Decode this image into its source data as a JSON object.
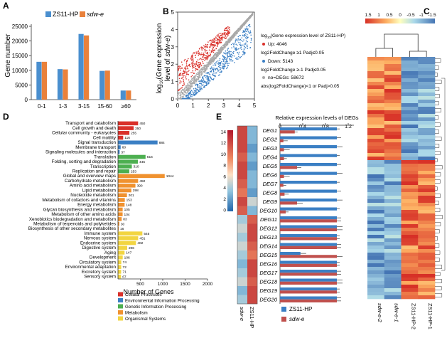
{
  "chart_data": [
    {
      "id": "A",
      "panel_label": "A",
      "type": "bar",
      "ylabel": "Gene number",
      "categories": [
        "0-1",
        "1-3",
        "3-15",
        "15-60",
        "≥60"
      ],
      "series": [
        {
          "name": "ZS11-HP",
          "color": "#4a8fcf",
          "values": [
            12900,
            10400,
            22400,
            9800,
            3100
          ]
        },
        {
          "name": "sdw-e",
          "color": "#e9813b",
          "values": [
            12900,
            10300,
            21900,
            9900,
            3100
          ]
        }
      ],
      "ylim": [
        0,
        25000
      ],
      "yticks": [
        "0",
        "5000",
        "10000",
        "15000",
        "20000",
        "25000"
      ]
    },
    {
      "id": "B",
      "panel_label": "B",
      "type": "scatter",
      "ylabel_parts": [
        "log",
        "10",
        "(Gene expression"
      ],
      "ylabel_line2_parts": [
        "level of ",
        "sdw-e",
        ")"
      ],
      "xlim": [
        0,
        5
      ],
      "ylim": [
        0,
        5
      ],
      "xticks": [
        "0",
        "1",
        "2",
        "3",
        "4",
        "5"
      ],
      "yticks": [
        "0",
        "1",
        "2",
        "3",
        "4",
        "5"
      ],
      "legend_title_parts": [
        "log",
        "10",
        "(Gene expression level of ZS11-HP)"
      ],
      "groups": [
        {
          "name": "Up",
          "count": 4046,
          "color": "#d9302a",
          "label": "Up: 4046"
        },
        {
          "name": "Down",
          "count": 5143,
          "color": "#3b7fc4",
          "label": "Down: 5143"
        },
        {
          "name": "no-DEGs",
          "count": 58672,
          "color": "#a9a9a9",
          "label": "no=DEGs: 58672"
        }
      ],
      "criteria": [
        "log2FoldChange ≥1   Padj≤0.05",
        "log2FoldChange ≥-1   Padj≤0.05",
        "abs(log2FoldChange)<1 or Padj>0.05"
      ]
    },
    {
      "id": "C",
      "panel_label": "C",
      "type": "heatmap",
      "colorbar_ticks": [
        "1.5",
        "1",
        "0.5",
        "0",
        "-0.5",
        "-1",
        "-1.5"
      ],
      "columns": [
        "sdw-e-2",
        "sdw-e-1",
        "ZS11-HP-2",
        "ZS11-HP-1"
      ]
    },
    {
      "id": "D",
      "panel_label": "D",
      "type": "bar",
      "orientation": "horizontal",
      "xlabel": "Number of Genes",
      "xlim": [
        0,
        2000
      ],
      "xticks": [
        "500",
        "1000",
        "1500",
        "2000"
      ],
      "categories": [
        "Transport and catabolism",
        "Cell growth and death",
        "Cellular community - eukaryotes",
        "Cell motility",
        "Signal transduction",
        "Membrane transport",
        "Signaling molecules and interaction",
        "Translation",
        "Folding, sorting and degradation",
        "Transcription",
        "Replication and repair",
        "Global and overview maps",
        "Carbohydrate metabolism",
        "Amino acid metabolism",
        "Lipid metabolism",
        "Nucleotide metabolism",
        "Metabolism of cofactors and vitamins",
        "Energy metabolism",
        "Glycan biosynthesis and metabolism",
        "Metabolism of other amino acids",
        "Xenobiotics biodegradation and metabolism",
        "Metabolism of terpenoids and polyketides",
        "Biosynthesis of other secondary metabolites",
        "Immune system",
        "Nervous system",
        "Endocrine system",
        "Digestive system",
        "Aging",
        "Development",
        "Circulatory system",
        "Environmental adaptation",
        "Excretory system",
        "Sensory system"
      ],
      "values": [
        450,
        350,
        255,
        116,
        884,
        60,
        37,
        616,
        445,
        310,
        253,
        1044,
        450,
        390,
        298,
        201,
        153,
        148,
        105,
        104,
        83,
        30,
        16,
        545,
        451,
        402,
        206,
        147,
        106,
        74,
        72,
        71,
        67
      ],
      "groups": [
        0,
        0,
        0,
        0,
        1,
        1,
        1,
        2,
        2,
        2,
        2,
        3,
        3,
        3,
        3,
        3,
        3,
        3,
        3,
        3,
        3,
        3,
        3,
        4,
        4,
        4,
        4,
        4,
        4,
        4,
        4,
        4,
        4
      ],
      "legend": [
        {
          "name": "Cellular Processes",
          "color": "#d9302a"
        },
        {
          "name": "Environmental Information Processing",
          "color": "#3b7fc4"
        },
        {
          "name": "Genetic Information Processing",
          "color": "#4caf50"
        },
        {
          "name": "Metabolism",
          "color": "#f0922f"
        },
        {
          "name": "Organismal Systems",
          "color": "#f2d541"
        }
      ]
    },
    {
      "id": "E",
      "panel_label": "E",
      "type": "bar",
      "orientation": "horizontal",
      "title": "Relative expression levels of DEGs",
      "xlim": [
        0,
        1.3
      ],
      "xticks": [
        "0",
        "0.4",
        "0.8",
        "1.2"
      ],
      "categories": [
        "DEG1",
        "DEG2",
        "DEG3",
        "DEG4",
        "DEG5",
        "DEG6",
        "DEG7",
        "DEG8",
        "DEG9",
        "DEG10",
        "DEG11",
        "DEG12",
        "DEG13",
        "DEG14",
        "DEG15",
        "DEG16",
        "DEG17",
        "DEG18",
        "DEG19",
        "DEG20"
      ],
      "series": [
        {
          "name": "ZS11-HP",
          "color": "#3b7fc4",
          "values": [
            1.0,
            1.0,
            1.0,
            1.0,
            1.0,
            1.0,
            1.0,
            1.0,
            1.0,
            1.0,
            1.0,
            1.0,
            1.0,
            1.0,
            0.36,
            1.0,
            1.0,
            1.0,
            1.0,
            1.0
          ]
        },
        {
          "name": "sdw-e",
          "color": "#c0504d",
          "values": [
            0.26,
            0.06,
            0.07,
            0.07,
            0.3,
            0.07,
            0.06,
            0.08,
            0.3,
            0.1,
            1.0,
            1.0,
            1.0,
            1.0,
            1.0,
            1.0,
            1.0,
            1.0,
            1.0,
            1.0
          ]
        }
      ],
      "heatmap_columns": [
        "sdw-e",
        "ZS11-HP"
      ],
      "heatmap_values": [
        [
          12,
          3
        ],
        [
          12,
          3
        ],
        [
          12,
          2
        ],
        [
          11,
          3
        ],
        [
          12,
          2
        ],
        [
          12,
          3
        ],
        [
          11,
          3
        ],
        [
          10,
          2
        ],
        [
          12,
          5
        ],
        [
          11,
          3
        ],
        [
          4,
          11
        ],
        [
          5,
          12
        ],
        [
          4,
          12
        ],
        [
          5,
          11
        ],
        [
          4,
          10
        ],
        [
          3,
          12
        ],
        [
          4,
          12
        ],
        [
          5,
          11
        ],
        [
          3,
          12
        ],
        [
          4,
          12
        ]
      ],
      "colorbar_ticks": [
        "14",
        "12",
        "10",
        "8",
        "6",
        "4",
        "2",
        "0"
      ],
      "legend": [
        {
          "name": "ZS11-HP",
          "color": "#3b7fc4"
        },
        {
          "name": "sdw-e",
          "color": "#c0504d"
        }
      ]
    }
  ]
}
